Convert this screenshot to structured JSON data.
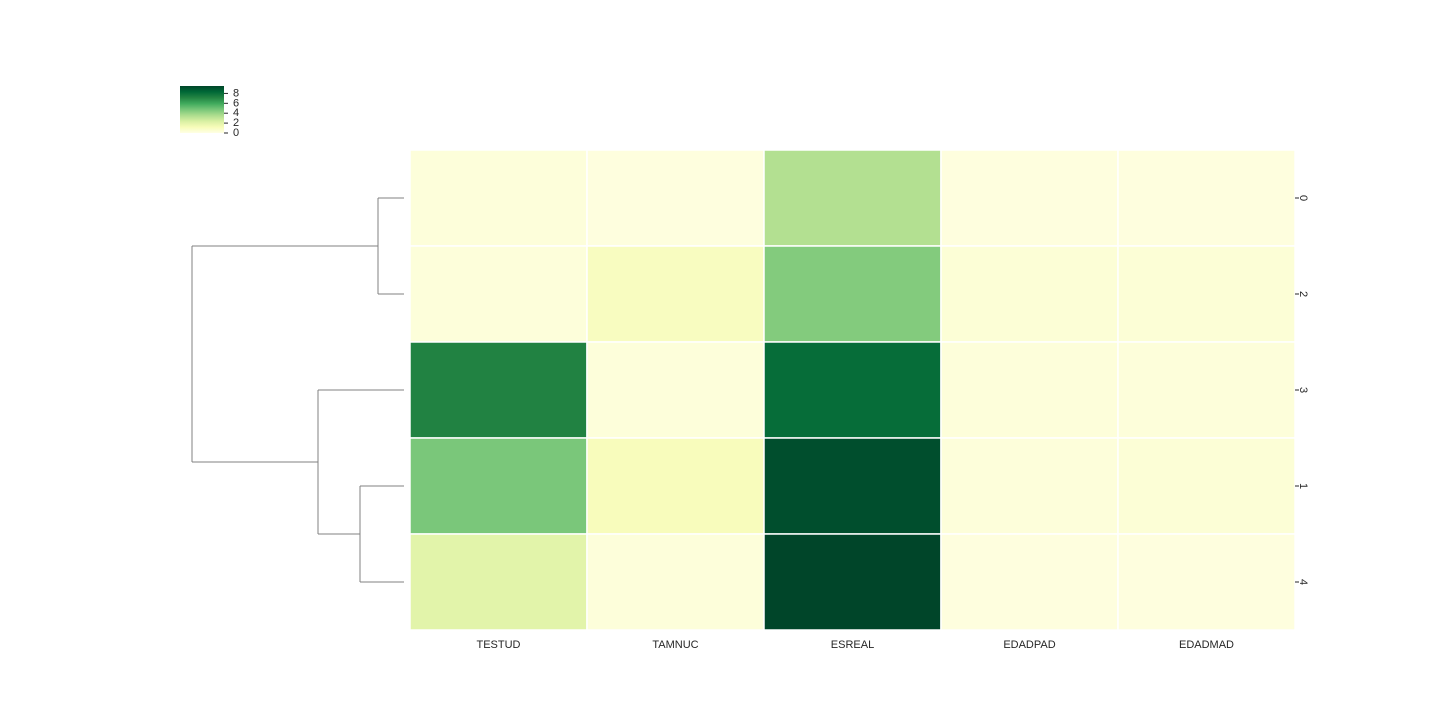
{
  "chart_data": {
    "type": "heatmap",
    "subtype": "clustermap",
    "title": "",
    "xlabel": "",
    "ylabel": "",
    "columns": [
      "TESTUD",
      "TAMNUC",
      "ESREAL",
      "EDADPAD",
      "EDADMAD"
    ],
    "row_labels": [
      "0",
      "2",
      "3",
      "1",
      "4"
    ],
    "values": [
      [
        0.3,
        0.2,
        3.4,
        0.2,
        0.2
      ],
      [
        0.3,
        1.0,
        4.5,
        0.4,
        0.4
      ],
      [
        7.2,
        0.3,
        8.1,
        0.3,
        0.3
      ],
      [
        4.7,
        1.1,
        9.2,
        0.3,
        0.4
      ],
      [
        2.0,
        0.3,
        9.5,
        0.2,
        0.2
      ]
    ],
    "colormap": "YlGn",
    "colormap_stops": [
      "#ffffe5",
      "#f7fcb9",
      "#d9f0a3",
      "#addd8e",
      "#78c679",
      "#41ab5d",
      "#238443",
      "#006837",
      "#004529"
    ],
    "colorbar": {
      "min": 0,
      "max": 9.5,
      "ticks": [
        "0",
        "2",
        "4",
        "6",
        "8"
      ]
    },
    "row_dendrogram": true,
    "col_dendrogram": false,
    "grid": false,
    "legend": "top-left colorbar"
  }
}
